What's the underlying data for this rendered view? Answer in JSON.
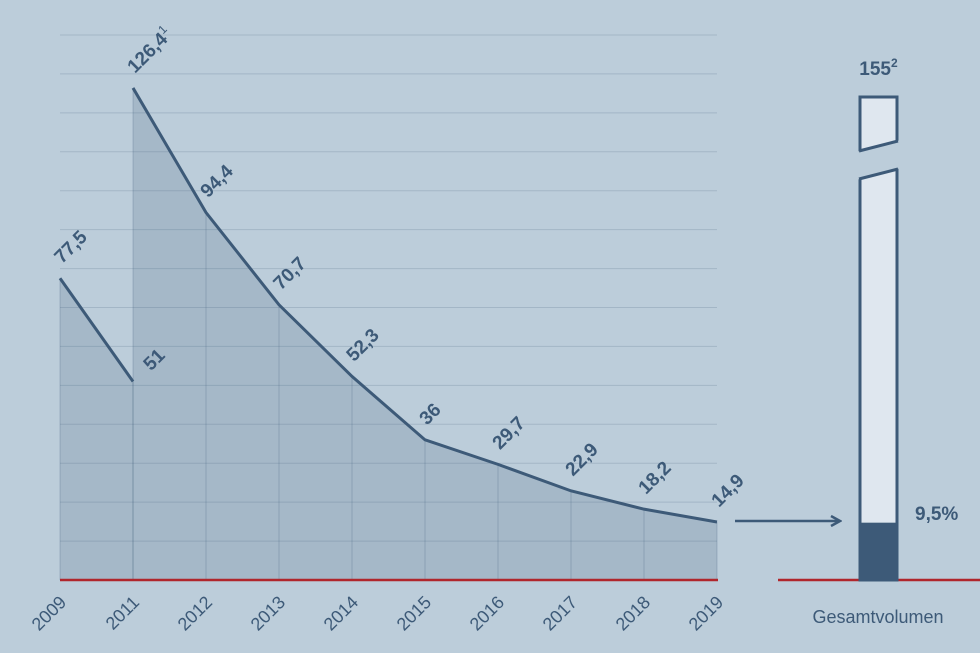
{
  "chart_data": {
    "type": "line",
    "categories": [
      "2009",
      "2011",
      "2012",
      "2013",
      "2014",
      "2015",
      "2016",
      "2017",
      "2018",
      "2019"
    ],
    "series": [
      {
        "color": "#3d5a78",
        "values": [
          77.5,
          51,
          null,
          null,
          null,
          null,
          null,
          null,
          null,
          null
        ],
        "value_labels": [
          "77,5",
          "51",
          null,
          null,
          null,
          null,
          null,
          null,
          null,
          null
        ]
      },
      {
        "color": "#3d5a78",
        "values": [
          null,
          126.4,
          94.4,
          70.7,
          52.3,
          36,
          29.7,
          22.9,
          18.2,
          14.9
        ],
        "value_labels": [
          null,
          "126,4",
          "94,4",
          "70,7",
          "52,3",
          "36",
          "29,7",
          "22,9",
          "18,2",
          "14,9"
        ],
        "value_label_notes": [
          null,
          "1",
          null,
          null,
          null,
          null,
          null,
          null,
          null,
          null
        ]
      }
    ],
    "ylim": [
      0,
      140
    ],
    "yticks": [
      0,
      10,
      20,
      30,
      40,
      50,
      60,
      70,
      80,
      90,
      100,
      110,
      120,
      130,
      140
    ],
    "grid": true,
    "show_ytick_labels": false,
    "baseline_color": "#b0262c",
    "total": {
      "label": "Gesamtvolumen",
      "value": 155,
      "value_label": "155",
      "note": "2",
      "share": 9.5,
      "share_label": "9,5%",
      "color": "#dfe7ef",
      "share_color": "#3d5a78"
    }
  }
}
